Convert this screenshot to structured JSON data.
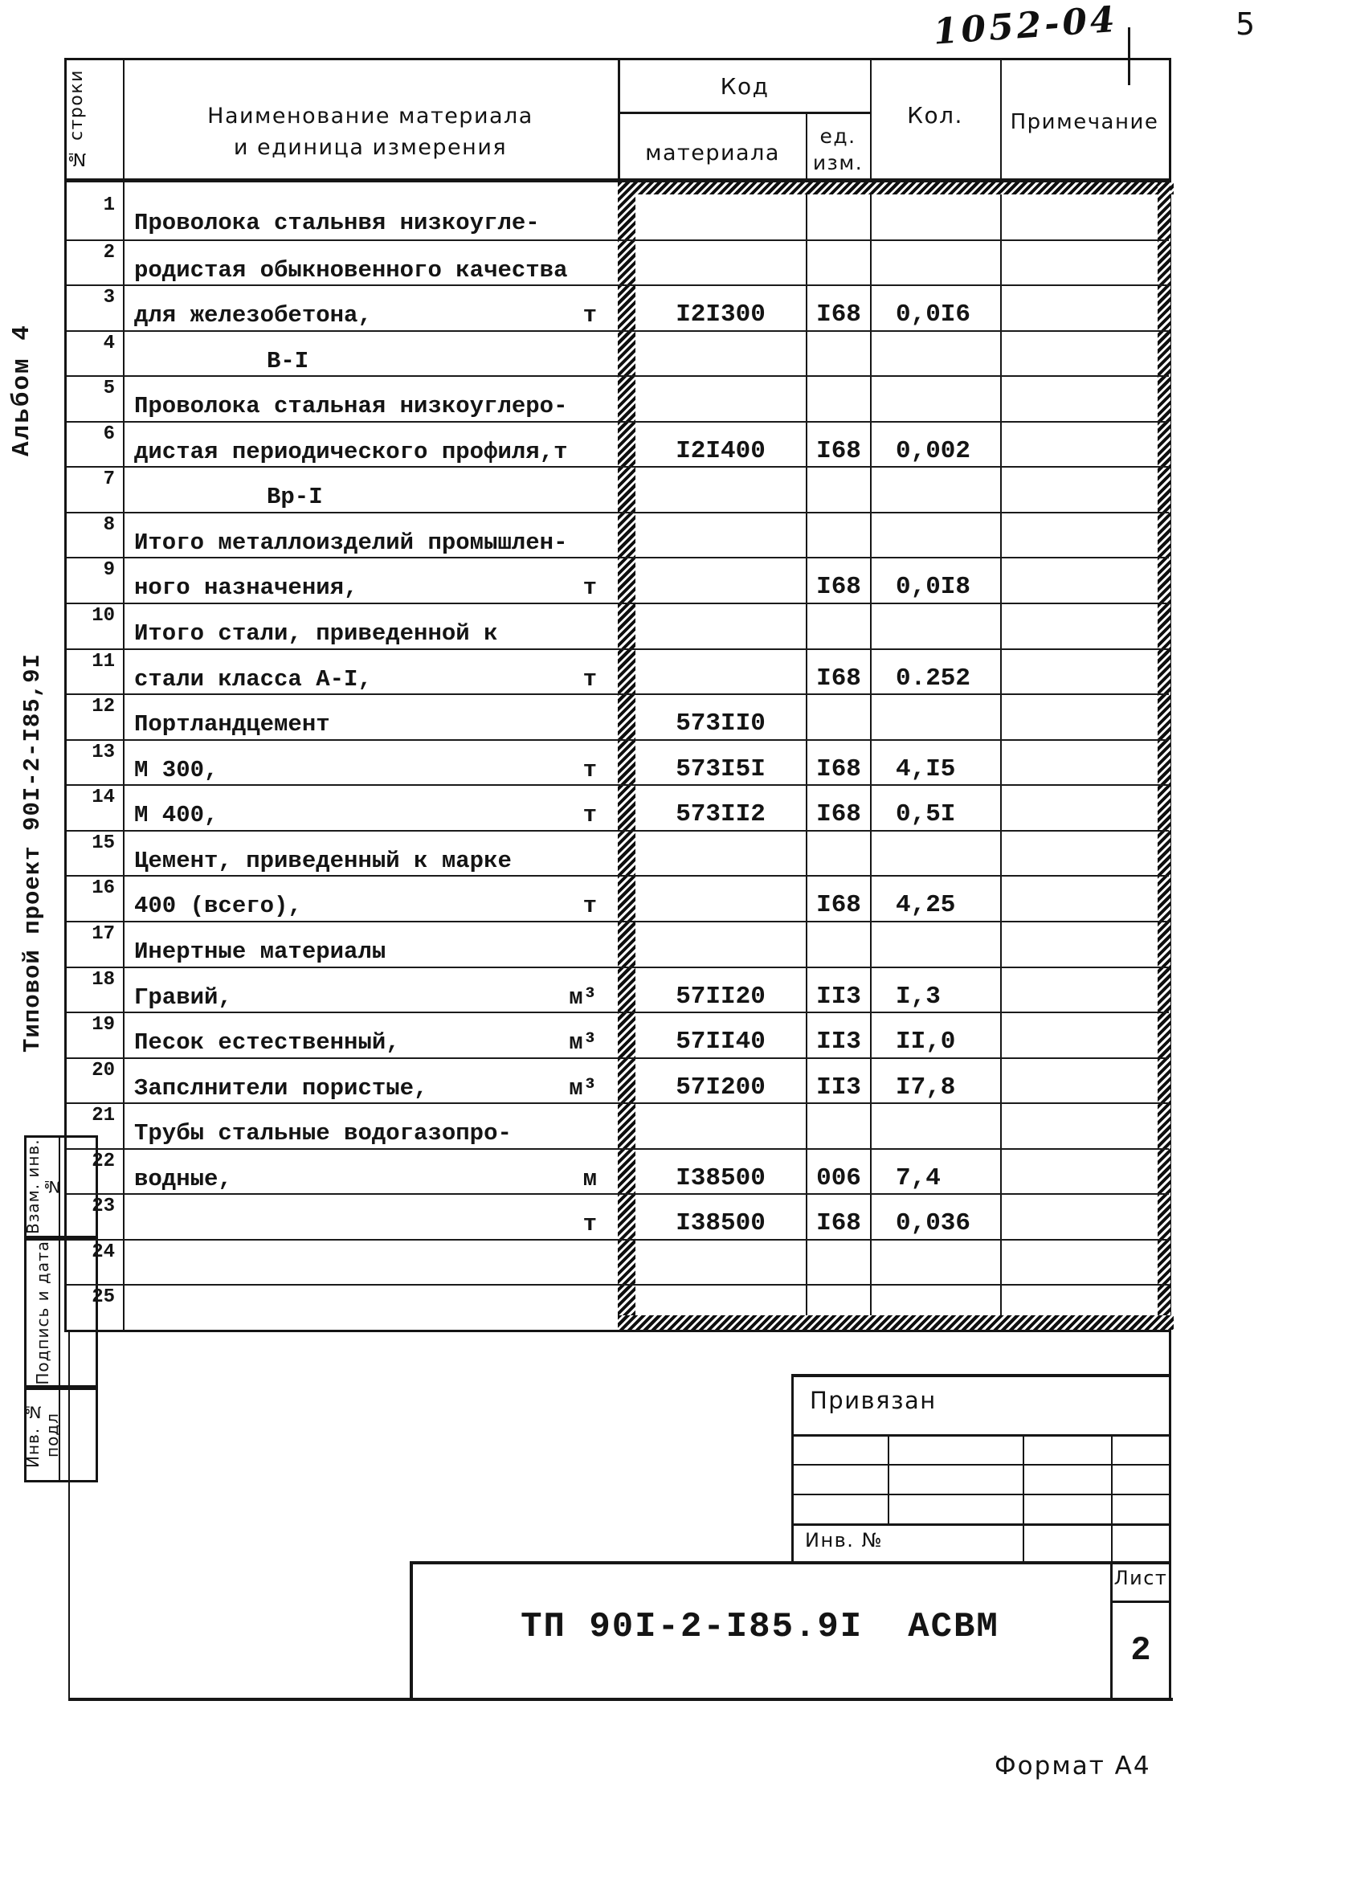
{
  "page": {
    "handwritten_doc_no": "1052-04",
    "page_number": "5",
    "format_label": "Формат А4",
    "margin": {
      "album": "Альбом 4",
      "project": "Типовой проект 90I-2-I85,9I",
      "stamps": [
        {
          "label": "Взам. инв. №"
        },
        {
          "label": "Подпись и дата"
        },
        {
          "label": "Инв. № подл"
        }
      ]
    }
  },
  "table": {
    "header": {
      "row_no": "№ строки",
      "name_line1": "Наименование материала",
      "name_line2": "и единица измерения",
      "code_group": "Код",
      "code_material": "материала",
      "code_unit_line1": "ед.",
      "code_unit_line2": "изм.",
      "qty": "Кол.",
      "note": "Примечание"
    },
    "rows": [
      {
        "n": "1",
        "name": "Проволока стальнвя низкоугле-",
        "unit": "",
        "code": "",
        "ucode": "",
        "qty": "",
        "indent": false
      },
      {
        "n": "2",
        "name": "родистая обыкновенного качества",
        "unit": "",
        "code": "",
        "ucode": "",
        "qty": "",
        "indent": false
      },
      {
        "n": "3",
        "name": "для железобетона,",
        "unit": "т",
        "code": "I2I300",
        "ucode": "I68",
        "qty": "0,0I6",
        "indent": false
      },
      {
        "n": "4",
        "name": "В-I",
        "unit": "",
        "code": "",
        "ucode": "",
        "qty": "",
        "indent": true
      },
      {
        "n": "5",
        "name": "Проволока стальная низкоуглеро-",
        "unit": "",
        "code": "",
        "ucode": "",
        "qty": "",
        "indent": false
      },
      {
        "n": "6",
        "name": "дистая периодического профиля,т",
        "unit": "",
        "code": "I2I400",
        "ucode": "I68",
        "qty": "0,002",
        "indent": false
      },
      {
        "n": "7",
        "name": "Вр-I",
        "unit": "",
        "code": "",
        "ucode": "",
        "qty": "",
        "indent": true
      },
      {
        "n": "8",
        "name": "Итого металлоизделий промышлен-",
        "unit": "",
        "code": "",
        "ucode": "",
        "qty": "",
        "indent": false
      },
      {
        "n": "9",
        "name": "ного назначения,",
        "unit": "т",
        "code": "",
        "ucode": "I68",
        "qty": "0,0I8",
        "indent": false
      },
      {
        "n": "10",
        "name": "Итого стали, приведенной к",
        "unit": "",
        "code": "",
        "ucode": "",
        "qty": "",
        "indent": false
      },
      {
        "n": "11",
        "name": "стали класса А-I,",
        "unit": "т",
        "code": "",
        "ucode": "I68",
        "qty": "0.252",
        "indent": false
      },
      {
        "n": "12",
        "name": "Портландцемент",
        "unit": "",
        "code": "573II0",
        "ucode": "",
        "qty": "",
        "indent": false
      },
      {
        "n": "13",
        "name": "М 300,",
        "unit": "т",
        "code": "573I5I",
        "ucode": "I68",
        "qty": "4,I5",
        "indent": false
      },
      {
        "n": "14",
        "name": "М 400,",
        "unit": "т",
        "code": "573II2",
        "ucode": "I68",
        "qty": "0,5I",
        "indent": false
      },
      {
        "n": "15",
        "name": "Цемент, приведенный к марке",
        "unit": "",
        "code": "",
        "ucode": "",
        "qty": "",
        "indent": false
      },
      {
        "n": "16",
        "name": "400 (всего),",
        "unit": "т",
        "code": "",
        "ucode": "I68",
        "qty": "4,25",
        "indent": false
      },
      {
        "n": "17",
        "name": "Инертные материалы",
        "unit": "",
        "code": "",
        "ucode": "",
        "qty": "",
        "indent": false
      },
      {
        "n": "18",
        "name": "Гравий,",
        "unit": "м³",
        "code": "57II20",
        "ucode": "II3",
        "qty": "I,3",
        "indent": false
      },
      {
        "n": "19",
        "name": "Песок естественный,",
        "unit": "м³",
        "code": "57II40",
        "ucode": "II3",
        "qty": "II,0",
        "indent": false
      },
      {
        "n": "20",
        "name": "Запслнители пористые,",
        "unit": "м³",
        "code": "57I200",
        "ucode": "II3",
        "qty": "I7,8",
        "indent": false
      },
      {
        "n": "21",
        "name": "Трубы стальные водогазопро-",
        "unit": "",
        "code": "",
        "ucode": "",
        "qty": "",
        "indent": false
      },
      {
        "n": "22",
        "name": "водные,",
        "unit": "м",
        "code": "I38500",
        "ucode": "006",
        "qty": "7,4",
        "indent": false
      },
      {
        "n": "23",
        "name": "",
        "unit": "т",
        "code": "I38500",
        "ucode": "I68",
        "qty": "0,036",
        "indent": false
      },
      {
        "n": "24",
        "name": "",
        "unit": "",
        "code": "",
        "ucode": "",
        "qty": "",
        "indent": false
      },
      {
        "n": "25",
        "name": "",
        "unit": "",
        "code": "",
        "ucode": "",
        "qty": "",
        "indent": false
      }
    ]
  },
  "title_block": {
    "privyazan": "Привязан",
    "inv_no": "Инв. №",
    "doc_code": "ТП 90I-2-I85.9I",
    "org_code": "АСВМ",
    "sheet_label": "Лист",
    "sheet_number": "2"
  }
}
